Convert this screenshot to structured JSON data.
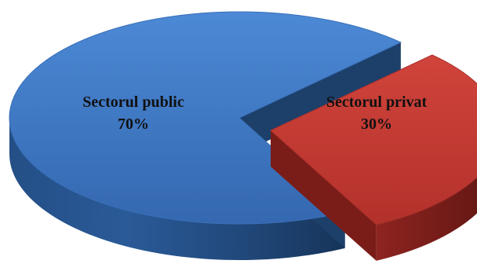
{
  "chart_data": {
    "type": "pie",
    "style": "3d-exploded",
    "title": "",
    "slices": [
      {
        "name": "Sectorul public",
        "value": 70,
        "label": "70%",
        "color": "#3f78c4"
      },
      {
        "name": "Sectorul privat",
        "value": 30,
        "label": "30%",
        "color": "#c43a33"
      }
    ],
    "exploded_slice": "Sectorul privat",
    "legend": "none",
    "data_labels": "inside"
  }
}
